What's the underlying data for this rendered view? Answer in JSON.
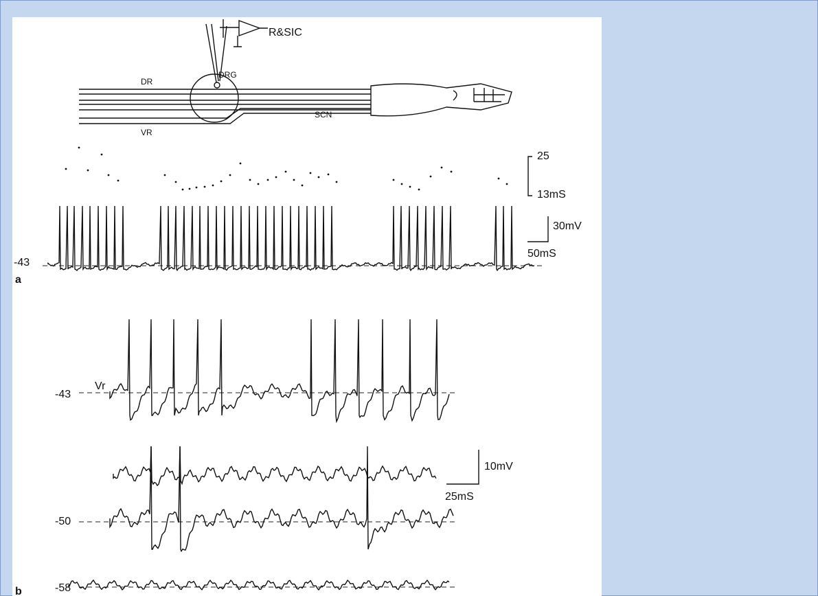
{
  "diagram": {
    "amplifier": "R&SIC",
    "labels": {
      "dr": "DR",
      "drg": "DRG",
      "vr": "VR",
      "scn": "SCN"
    }
  },
  "panel_a": {
    "interval_scale_top": "25",
    "interval_scale_bottom": "13mS",
    "voltage_scale": "30mV",
    "time_scale": "50mS",
    "baseline": "-43",
    "label": "a"
  },
  "panel_b": {
    "trace1_baseline": "-43",
    "trace1_marker": "Vr",
    "voltage_scale": "10mV",
    "time_scale": "25mS",
    "trace2_baseline": "-50",
    "trace3_baseline": "-58",
    "label": "b"
  }
}
